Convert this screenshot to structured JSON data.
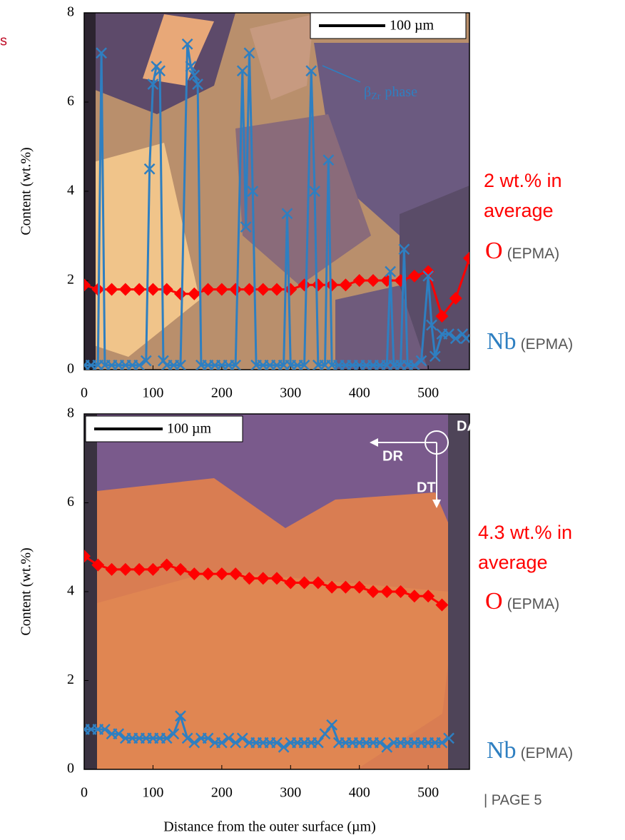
{
  "page": {
    "title_fragment": "s",
    "footer": "| PAGE 5"
  },
  "chart_data": [
    {
      "type": "line",
      "ylabel": "Content (wt.%)",
      "xlim": [
        0,
        560
      ],
      "ylim": [
        0,
        8
      ],
      "xticks": [
        0,
        100,
        200,
        300,
        400,
        500
      ],
      "yticks": [
        0,
        2,
        4,
        6,
        8
      ],
      "annotations": {
        "average": "2 wt.% in average",
        "scale_bar": "100 µm",
        "phase": "β",
        "phase_sub": "Zr",
        "phase_word": "phase",
        "method": "(EPMA)"
      },
      "series": [
        {
          "name": "O",
          "color": "#ff0000",
          "marker": "diamond",
          "x": [
            0,
            20,
            40,
            60,
            80,
            100,
            120,
            140,
            160,
            180,
            200,
            220,
            240,
            260,
            280,
            300,
            320,
            340,
            360,
            380,
            400,
            420,
            440,
            460,
            480,
            500,
            520,
            540,
            560
          ],
          "values": [
            1.9,
            1.8,
            1.8,
            1.8,
            1.8,
            1.8,
            1.8,
            1.7,
            1.7,
            1.8,
            1.8,
            1.8,
            1.8,
            1.8,
            1.8,
            1.8,
            1.9,
            1.9,
            1.9,
            1.9,
            2.0,
            2.0,
            2.0,
            2.0,
            2.1,
            2.2,
            1.2,
            1.6,
            2.5
          ]
        },
        {
          "name": "Nb",
          "color": "#2e7fc1",
          "marker": "cross",
          "x": [
            0,
            10,
            20,
            25,
            30,
            40,
            50,
            60,
            70,
            80,
            90,
            95,
            100,
            105,
            110,
            115,
            120,
            130,
            140,
            150,
            155,
            160,
            165,
            170,
            180,
            190,
            200,
            210,
            220,
            230,
            235,
            240,
            245,
            250,
            260,
            270,
            280,
            290,
            295,
            300,
            310,
            320,
            330,
            335,
            340,
            350,
            355,
            360,
            370,
            380,
            390,
            400,
            410,
            420,
            430,
            440,
            445,
            450,
            460,
            465,
            470,
            480,
            490,
            500,
            505,
            510,
            520,
            530,
            540,
            550,
            555
          ],
          "values": [
            0.1,
            0.1,
            0.1,
            7.1,
            0.1,
            0.1,
            0.1,
            0.1,
            0.1,
            0.1,
            0.2,
            4.5,
            6.4,
            6.8,
            6.7,
            0.2,
            0.1,
            0.1,
            0.1,
            7.3,
            6.8,
            6.6,
            6.4,
            0.1,
            0.1,
            0.1,
            0.1,
            0.1,
            0.1,
            6.7,
            3.2,
            7.1,
            4.0,
            0.1,
            0.1,
            0.1,
            0.1,
            0.1,
            3.5,
            0.1,
            0.1,
            0.1,
            6.7,
            4.0,
            0.1,
            0.1,
            4.7,
            0.1,
            0.1,
            0.1,
            0.1,
            0.1,
            0.1,
            0.1,
            0.1,
            0.1,
            2.2,
            0.1,
            0.1,
            2.7,
            0.1,
            0.1,
            0.2,
            2.1,
            1.0,
            0.3,
            0.8,
            0.8,
            0.7,
            0.8,
            0.7
          ]
        }
      ]
    },
    {
      "type": "line",
      "ylabel": "Content (wt.%)",
      "xlabel": "Distance from the outer surface (µm)",
      "xlim": [
        0,
        560
      ],
      "ylim": [
        0,
        8
      ],
      "xticks": [
        0,
        100,
        200,
        300,
        400,
        500
      ],
      "yticks": [
        0,
        2,
        4,
        6,
        8
      ],
      "annotations": {
        "average": "4.3 wt.% in average",
        "scale_bar": "100 µm",
        "da": "DA",
        "dr": "DR",
        "dt": "DT",
        "method": "(EPMA)"
      },
      "series": [
        {
          "name": "O",
          "color": "#ff0000",
          "marker": "diamond",
          "x": [
            0,
            20,
            40,
            60,
            80,
            100,
            120,
            140,
            160,
            180,
            200,
            220,
            240,
            260,
            280,
            300,
            320,
            340,
            360,
            380,
            400,
            420,
            440,
            460,
            480,
            500,
            520
          ],
          "values": [
            4.8,
            4.6,
            4.5,
            4.5,
            4.5,
            4.5,
            4.6,
            4.5,
            4.4,
            4.4,
            4.4,
            4.4,
            4.3,
            4.3,
            4.3,
            4.2,
            4.2,
            4.2,
            4.1,
            4.1,
            4.1,
            4.0,
            4.0,
            4.0,
            3.9,
            3.9,
            3.7
          ]
        },
        {
          "name": "Nb",
          "color": "#2e7fc1",
          "marker": "cross",
          "x": [
            0,
            10,
            20,
            30,
            40,
            50,
            60,
            70,
            80,
            90,
            100,
            110,
            120,
            130,
            140,
            150,
            160,
            170,
            180,
            190,
            200,
            210,
            220,
            230,
            240,
            250,
            260,
            270,
            280,
            290,
            300,
            310,
            320,
            330,
            340,
            350,
            360,
            370,
            380,
            390,
            400,
            410,
            420,
            430,
            440,
            450,
            460,
            470,
            480,
            490,
            500,
            510,
            520,
            530
          ],
          "values": [
            0.9,
            0.9,
            0.9,
            0.9,
            0.8,
            0.8,
            0.7,
            0.7,
            0.7,
            0.7,
            0.7,
            0.7,
            0.7,
            0.8,
            1.2,
            0.7,
            0.6,
            0.7,
            0.7,
            0.6,
            0.6,
            0.7,
            0.6,
            0.7,
            0.6,
            0.6,
            0.6,
            0.6,
            0.6,
            0.5,
            0.6,
            0.6,
            0.6,
            0.6,
            0.6,
            0.8,
            1.0,
            0.6,
            0.6,
            0.6,
            0.6,
            0.6,
            0.6,
            0.6,
            0.5,
            0.6,
            0.6,
            0.6,
            0.6,
            0.6,
            0.6,
            0.6,
            0.6,
            0.7
          ]
        }
      ]
    }
  ]
}
